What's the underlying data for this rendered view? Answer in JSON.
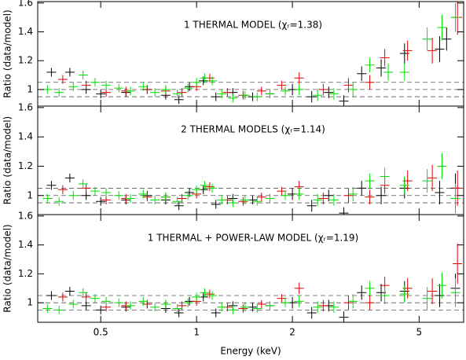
{
  "chart_data": [
    {
      "type": "scatter",
      "annotation": "1 THERMAL MODEL (χᵣ=1.38)",
      "ylabel": "Ratio (data/model)",
      "xlog": true,
      "xlim": [
        0.317,
        6.9
      ],
      "ylim": [
        0.885,
        1.61
      ],
      "yticks": [
        1,
        1.2,
        1.4,
        1.6
      ],
      "reference_lines": [
        0.95,
        1,
        1.05
      ],
      "series": [
        {
          "color": "#000000",
          "x": [
            0.35,
            0.4,
            0.45,
            0.5,
            0.6,
            0.7,
            0.8,
            0.88,
            0.95,
            1.05,
            1.15,
            1.3,
            1.5,
            1.7,
            2.0,
            2.3,
            2.6,
            2.9,
            3.3,
            3.8,
            4.5,
            5.8,
            6.1
          ],
          "values": [
            1.12,
            1.12,
            1.0,
            0.97,
            0.98,
            1.0,
            0.96,
            0.93,
            1.02,
            1.06,
            0.95,
            0.98,
            0.95,
            0.97,
            1.0,
            0.95,
            0.98,
            0.92,
            1.11,
            1.15,
            1.25,
            1.28,
            1.35
          ],
          "errors": [
            0.03,
            0.03,
            0.03,
            0.03,
            0.03,
            0.03,
            0.03,
            0.03,
            0.03,
            0.03,
            0.03,
            0.03,
            0.03,
            0.03,
            0.04,
            0.04,
            0.04,
            0.04,
            0.05,
            0.06,
            0.07,
            0.09,
            0.08
          ]
        },
        {
          "color": "#e00000",
          "x": [
            0.38,
            0.45,
            0.52,
            0.6,
            0.7,
            0.8,
            0.9,
            1.0,
            1.1,
            1.25,
            1.4,
            1.6,
            1.85,
            2.1,
            2.5,
            3.0,
            3.5,
            3.9,
            4.6,
            5.5,
            6.6
          ],
          "values": [
            1.07,
            1.03,
            0.98,
            0.99,
            1.0,
            0.99,
            0.98,
            1.02,
            1.08,
            0.98,
            0.96,
            0.99,
            1.03,
            1.08,
            1.0,
            1.03,
            1.05,
            1.22,
            1.27,
            1.27,
            1.5
          ],
          "errors": [
            0.03,
            0.03,
            0.03,
            0.03,
            0.03,
            0.03,
            0.03,
            0.03,
            0.03,
            0.03,
            0.03,
            0.03,
            0.03,
            0.04,
            0.04,
            0.05,
            0.05,
            0.06,
            0.07,
            0.09,
            0.12
          ]
        },
        {
          "color": "#00e000",
          "x": [
            0.34,
            0.37,
            0.41,
            0.44,
            0.48,
            0.52,
            0.57,
            0.62,
            0.68,
            0.74,
            0.8,
            0.87,
            0.94,
            1.0,
            1.06,
            1.12,
            1.2,
            1.3,
            1.42,
            1.55,
            1.7,
            1.9,
            2.1,
            2.4,
            2.7,
            3.1,
            3.5,
            4.0,
            4.5,
            5.3,
            5.9,
            6.5
          ],
          "values": [
            1.0,
            0.98,
            1.02,
            1.1,
            1.05,
            1.03,
            1.01,
            0.99,
            1.02,
            0.98,
            1.0,
            0.97,
            1.01,
            1.05,
            1.08,
            1.06,
            0.97,
            0.94,
            0.96,
            0.95,
            0.97,
            0.99,
            1.0,
            0.96,
            0.97,
            1.0,
            1.17,
            1.12,
            1.12,
            1.35,
            1.43,
            1.5
          ],
          "errors": [
            0.03,
            0.03,
            0.03,
            0.03,
            0.03,
            0.03,
            0.03,
            0.03,
            0.03,
            0.03,
            0.03,
            0.03,
            0.03,
            0.03,
            0.03,
            0.03,
            0.03,
            0.03,
            0.03,
            0.03,
            0.03,
            0.03,
            0.04,
            0.04,
            0.04,
            0.05,
            0.05,
            0.06,
            0.06,
            0.08,
            0.09,
            0.1
          ]
        }
      ]
    },
    {
      "type": "scatter",
      "annotation": "2 THERMAL MODELS (χᵣ=1.14)",
      "ylabel": "Ratio (data/model)",
      "xlog": true,
      "xlim": [
        0.317,
        6.9
      ],
      "ylim": [
        0.87,
        1.61
      ],
      "yticks": [
        1,
        1.2,
        1.4,
        1.6
      ],
      "reference_lines": [
        0.95,
        1,
        1.05
      ],
      "series": [
        {
          "color": "#000000",
          "x": [
            0.35,
            0.4,
            0.45,
            0.5,
            0.6,
            0.7,
            0.8,
            0.88,
            0.95,
            1.05,
            1.15,
            1.3,
            1.5,
            1.7,
            2.0,
            2.3,
            2.6,
            2.9,
            3.3,
            3.8,
            4.5,
            5.8,
            6.5
          ],
          "values": [
            1.07,
            1.12,
            1.0,
            0.96,
            0.97,
            1.0,
            0.97,
            0.93,
            1.02,
            1.04,
            0.94,
            0.98,
            0.97,
            0.98,
            1.01,
            0.93,
            1.0,
            0.88,
            1.05,
            1.0,
            1.05,
            1.02,
            1.05
          ],
          "errors": [
            0.03,
            0.03,
            0.03,
            0.03,
            0.03,
            0.03,
            0.03,
            0.03,
            0.03,
            0.03,
            0.03,
            0.03,
            0.03,
            0.03,
            0.04,
            0.04,
            0.04,
            0.04,
            0.05,
            0.06,
            0.07,
            0.08,
            0.1
          ]
        },
        {
          "color": "#e00000",
          "x": [
            0.38,
            0.45,
            0.52,
            0.6,
            0.7,
            0.8,
            0.9,
            1.0,
            1.1,
            1.25,
            1.4,
            1.6,
            1.85,
            2.1,
            2.5,
            3.0,
            3.5,
            3.9,
            4.6,
            5.5,
            6.6
          ],
          "values": [
            1.04,
            1.05,
            0.97,
            0.98,
            0.99,
            0.99,
            0.98,
            1.01,
            1.06,
            0.97,
            0.96,
            0.99,
            1.03,
            1.06,
            0.98,
            1.0,
            0.99,
            1.07,
            1.1,
            1.12,
            1.05
          ],
          "errors": [
            0.03,
            0.03,
            0.03,
            0.03,
            0.03,
            0.03,
            0.03,
            0.03,
            0.03,
            0.03,
            0.03,
            0.03,
            0.03,
            0.04,
            0.04,
            0.05,
            0.05,
            0.06,
            0.07,
            0.09,
            0.12
          ]
        },
        {
          "color": "#00e000",
          "x": [
            0.34,
            0.37,
            0.41,
            0.44,
            0.48,
            0.52,
            0.57,
            0.62,
            0.68,
            0.74,
            0.8,
            0.87,
            0.94,
            1.0,
            1.06,
            1.12,
            1.2,
            1.3,
            1.42,
            1.55,
            1.7,
            1.9,
            2.1,
            2.4,
            2.7,
            3.1,
            3.5,
            3.9,
            4.5,
            5.3,
            5.9,
            6.5
          ],
          "values": [
            0.98,
            0.96,
            1.0,
            1.08,
            1.03,
            1.02,
            1.0,
            0.98,
            1.01,
            0.97,
            0.99,
            0.96,
            1.0,
            1.04,
            1.07,
            1.05,
            0.97,
            0.95,
            0.97,
            0.96,
            0.98,
            1.0,
            1.01,
            0.97,
            0.97,
            1.01,
            1.1,
            1.13,
            1.07,
            1.1,
            1.2,
            0.98
          ],
          "errors": [
            0.03,
            0.03,
            0.03,
            0.03,
            0.03,
            0.03,
            0.03,
            0.03,
            0.03,
            0.03,
            0.03,
            0.03,
            0.03,
            0.03,
            0.03,
            0.03,
            0.03,
            0.03,
            0.03,
            0.03,
            0.03,
            0.03,
            0.04,
            0.04,
            0.04,
            0.05,
            0.05,
            0.06,
            0.06,
            0.08,
            0.09,
            0.1
          ]
        }
      ]
    },
    {
      "type": "scatter",
      "annotation": "1 THERMAL + POWER-LAW MODEL (χᵣ=1.19)",
      "ylabel": "Ratio (data/model)",
      "xlabel": "Energy (keV)",
      "xlog": true,
      "xlim": [
        0.317,
        6.9
      ],
      "ylim": [
        0.865,
        1.61
      ],
      "yticks": [
        1,
        1.2,
        1.4,
        1.6
      ],
      "xticks": [
        0.5,
        1,
        2,
        5
      ],
      "reference_lines": [
        0.95,
        1,
        1.05
      ],
      "series": [
        {
          "color": "#000000",
          "x": [
            0.35,
            0.4,
            0.45,
            0.5,
            0.6,
            0.7,
            0.8,
            0.88,
            0.95,
            1.05,
            1.15,
            1.3,
            1.5,
            1.7,
            2.0,
            2.3,
            2.6,
            2.9,
            3.3,
            3.8,
            4.5,
            5.8,
            6.5
          ],
          "values": [
            1.05,
            1.08,
            0.98,
            0.95,
            0.97,
            0.99,
            0.96,
            0.93,
            1.01,
            1.04,
            0.93,
            0.98,
            0.97,
            0.98,
            1.0,
            0.93,
            0.98,
            0.9,
            1.07,
            1.07,
            1.08,
            1.05,
            1.1
          ],
          "errors": [
            0.03,
            0.03,
            0.03,
            0.03,
            0.03,
            0.03,
            0.03,
            0.03,
            0.03,
            0.03,
            0.03,
            0.03,
            0.03,
            0.03,
            0.04,
            0.04,
            0.04,
            0.04,
            0.05,
            0.06,
            0.07,
            0.08,
            0.1
          ]
        },
        {
          "color": "#e00000",
          "x": [
            0.38,
            0.45,
            0.52,
            0.6,
            0.7,
            0.8,
            0.9,
            1.0,
            1.1,
            1.25,
            1.4,
            1.6,
            1.85,
            2.1,
            2.5,
            3.0,
            3.5,
            3.9,
            4.6,
            5.5,
            6.6
          ],
          "values": [
            1.04,
            1.04,
            0.97,
            0.98,
            0.99,
            0.99,
            0.98,
            1.01,
            1.06,
            0.97,
            0.96,
            0.99,
            1.03,
            1.1,
            0.98,
            1.0,
            1.0,
            1.12,
            1.1,
            1.08,
            1.27
          ],
          "errors": [
            0.03,
            0.03,
            0.03,
            0.03,
            0.03,
            0.03,
            0.03,
            0.03,
            0.03,
            0.03,
            0.03,
            0.03,
            0.03,
            0.04,
            0.04,
            0.05,
            0.05,
            0.06,
            0.07,
            0.09,
            0.14
          ]
        },
        {
          "color": "#00e000",
          "x": [
            0.34,
            0.37,
            0.41,
            0.44,
            0.48,
            0.52,
            0.57,
            0.62,
            0.68,
            0.74,
            0.8,
            0.87,
            0.94,
            1.0,
            1.06,
            1.12,
            1.2,
            1.3,
            1.42,
            1.55,
            1.7,
            1.9,
            2.1,
            2.4,
            2.7,
            3.1,
            3.5,
            3.9,
            4.5,
            5.3,
            5.9,
            6.5
          ],
          "values": [
            0.96,
            0.95,
            0.99,
            1.07,
            1.03,
            1.01,
            1.0,
            0.98,
            1.01,
            0.97,
            0.99,
            0.96,
            1.0,
            1.04,
            1.07,
            1.05,
            0.97,
            0.95,
            0.97,
            0.96,
            0.98,
            1.0,
            1.01,
            0.97,
            0.97,
            1.01,
            1.1,
            1.05,
            1.06,
            1.03,
            1.12,
            1.07
          ],
          "errors": [
            0.03,
            0.03,
            0.03,
            0.03,
            0.03,
            0.03,
            0.03,
            0.03,
            0.03,
            0.03,
            0.03,
            0.03,
            0.03,
            0.03,
            0.03,
            0.03,
            0.03,
            0.03,
            0.03,
            0.03,
            0.03,
            0.03,
            0.04,
            0.04,
            0.04,
            0.05,
            0.05,
            0.06,
            0.06,
            0.08,
            0.09,
            0.1
          ]
        }
      ]
    }
  ]
}
